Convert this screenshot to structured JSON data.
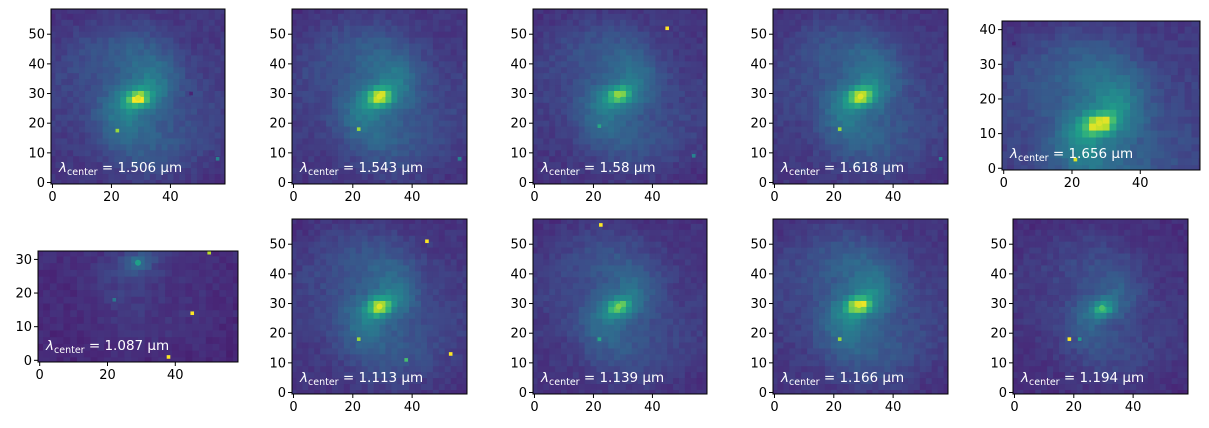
{
  "chart_data": {
    "type": "heatmap",
    "colormap": "viridis",
    "colors": {
      "background": "#ffffff",
      "axis": "#000000",
      "label_text": "#ffffff",
      "viridis_low": "#3d2e71",
      "viridis_mid": "#2a8c8c",
      "viridis_high": "#fde725"
    },
    "panels": [
      {
        "id": "p1",
        "row": 1,
        "col": 1,
        "symbol": "λ",
        "subscript": "center",
        "value": "1.506",
        "unit": "μm",
        "xlim": [
          -0.5,
          58.5
        ],
        "ylim": [
          -0.5,
          58.5
        ],
        "xticks": [
          0,
          20,
          40
        ],
        "xtick_labels": [
          "0",
          "20",
          "40"
        ],
        "yticks": [
          0,
          10,
          20,
          30,
          40,
          50
        ],
        "ytick_labels": [
          "0",
          "10",
          "20",
          "30",
          "40",
          "50"
        ],
        "galaxy": {
          "cx": 29,
          "cy": 28.5,
          "peak": 1.0,
          "disk_level": 0.55
        },
        "sources": [
          {
            "x": 22,
            "y": 17.5,
            "v": 0.85
          },
          {
            "x": 56,
            "y": 8,
            "v": 0.45
          },
          {
            "x": 47,
            "y": 30,
            "v": 0.1
          }
        ]
      },
      {
        "id": "p2",
        "row": 1,
        "col": 2,
        "symbol": "λ",
        "subscript": "center",
        "value": "1.543",
        "unit": "μm",
        "xlim": [
          -0.5,
          58.5
        ],
        "ylim": [
          -0.5,
          58.5
        ],
        "xticks": [
          0,
          20,
          40
        ],
        "xtick_labels": [
          "0",
          "20",
          "40"
        ],
        "yticks": [
          0,
          10,
          20,
          30,
          40,
          50
        ],
        "ytick_labels": [
          "0",
          "10",
          "20",
          "30",
          "40",
          "50"
        ],
        "galaxy": {
          "cx": 29,
          "cy": 29,
          "peak": 1.0,
          "disk_level": 0.55
        },
        "sources": [
          {
            "x": 22,
            "y": 18,
            "v": 0.85
          },
          {
            "x": 56,
            "y": 8,
            "v": 0.45
          }
        ]
      },
      {
        "id": "p3",
        "row": 1,
        "col": 3,
        "symbol": "λ",
        "subscript": "center",
        "value": "1.58",
        "unit": "μm",
        "xlim": [
          -0.5,
          58.5
        ],
        "ylim": [
          -0.5,
          58.5
        ],
        "xticks": [
          0,
          20,
          40
        ],
        "xtick_labels": [
          "0",
          "20",
          "40"
        ],
        "yticks": [
          0,
          10,
          20,
          30,
          40,
          50
        ],
        "ytick_labels": [
          "0",
          "10",
          "20",
          "30",
          "40",
          "50"
        ],
        "galaxy": {
          "cx": 28.5,
          "cy": 29.5,
          "peak": 0.8,
          "disk_level": 0.5
        },
        "sources": [
          {
            "x": 22,
            "y": 19,
            "v": 0.6
          },
          {
            "x": 45,
            "y": 52,
            "v": 1.0
          },
          {
            "x": 54,
            "y": 9,
            "v": 0.45
          }
        ]
      },
      {
        "id": "p4",
        "row": 1,
        "col": 4,
        "symbol": "λ",
        "subscript": "center",
        "value": "1.618",
        "unit": "μm",
        "xlim": [
          -0.5,
          58.5
        ],
        "ylim": [
          -0.5,
          58.5
        ],
        "xticks": [
          0,
          20,
          40
        ],
        "xtick_labels": [
          "0",
          "20",
          "40"
        ],
        "yticks": [
          0,
          10,
          20,
          30,
          40,
          50
        ],
        "ytick_labels": [
          "0",
          "10",
          "20",
          "30",
          "40",
          "50"
        ],
        "galaxy": {
          "cx": 29,
          "cy": 29,
          "peak": 1.0,
          "disk_level": 0.55
        },
        "sources": [
          {
            "x": 22,
            "y": 18,
            "v": 0.85
          },
          {
            "x": 56,
            "y": 8,
            "v": 0.45
          }
        ]
      },
      {
        "id": "p5",
        "row": 1,
        "col": 5,
        "symbol": "λ",
        "subscript": "center",
        "value": "1.656",
        "unit": "μm",
        "xlim": [
          -0.5,
          57.5
        ],
        "ylim": [
          -0.5,
          42.5
        ],
        "xticks": [
          0,
          20,
          40
        ],
        "xtick_labels": [
          "0",
          "20",
          "40"
        ],
        "yticks": [
          0,
          10,
          20,
          30,
          40
        ],
        "ytick_labels": [
          "0",
          "10",
          "20",
          "30",
          "40"
        ],
        "galaxy": {
          "cx": 28,
          "cy": 13,
          "peak": 1.0,
          "disk_level": 0.65
        },
        "sources": [
          {
            "x": 21,
            "y": 2.5,
            "v": 0.95
          },
          {
            "x": 3,
            "y": 36,
            "v": 0.1
          }
        ]
      },
      {
        "id": "p6",
        "row": 2,
        "col": 1,
        "symbol": "λ",
        "subscript": "center",
        "value": "1.087",
        "unit": "μm",
        "xlim": [
          -0.5,
          58.5
        ],
        "ylim": [
          -0.5,
          32.5
        ],
        "xticks": [
          0,
          20,
          40
        ],
        "xtick_labels": [
          "0",
          "20",
          "40"
        ],
        "yticks": [
          0,
          10,
          20,
          30
        ],
        "ytick_labels": [
          "0",
          "10",
          "20",
          "30"
        ],
        "galaxy": {
          "cx": 29,
          "cy": 29,
          "peak": 0.35,
          "disk_level": 0.15
        },
        "sources": [
          {
            "x": 45,
            "y": 14,
            "v": 1.0
          },
          {
            "x": 38,
            "y": 1,
            "v": 1.0
          },
          {
            "x": 22,
            "y": 18,
            "v": 0.4
          },
          {
            "x": 50,
            "y": 32,
            "v": 0.9
          }
        ]
      },
      {
        "id": "p7",
        "row": 2,
        "col": 2,
        "symbol": "λ",
        "subscript": "center",
        "value": "1.113",
        "unit": "μm",
        "xlim": [
          -0.5,
          58.5
        ],
        "ylim": [
          -0.5,
          58.5
        ],
        "xticks": [
          0,
          20,
          40
        ],
        "xtick_labels": [
          "0",
          "20",
          "40"
        ],
        "yticks": [
          0,
          10,
          20,
          30,
          40,
          50
        ],
        "ytick_labels": [
          "0",
          "10",
          "20",
          "30",
          "40",
          "50"
        ],
        "galaxy": {
          "cx": 29,
          "cy": 29,
          "peak": 1.0,
          "disk_level": 0.5
        },
        "sources": [
          {
            "x": 22,
            "y": 18,
            "v": 0.85
          },
          {
            "x": 45,
            "y": 51,
            "v": 1.0
          },
          {
            "x": 53,
            "y": 13,
            "v": 1.0
          },
          {
            "x": 38,
            "y": 11,
            "v": 0.7
          }
        ]
      },
      {
        "id": "p8",
        "row": 2,
        "col": 3,
        "symbol": "λ",
        "subscript": "center",
        "value": "1.139",
        "unit": "μm",
        "xlim": [
          -0.5,
          58.5
        ],
        "ylim": [
          -0.5,
          58.5
        ],
        "xticks": [
          0,
          20,
          40
        ],
        "xtick_labels": [
          "0",
          "20",
          "40"
        ],
        "yticks": [
          0,
          10,
          20,
          30,
          40,
          50
        ],
        "ytick_labels": [
          "0",
          "10",
          "20",
          "30",
          "40",
          "50"
        ],
        "galaxy": {
          "cx": 28.5,
          "cy": 29,
          "peak": 0.75,
          "disk_level": 0.45
        },
        "sources": [
          {
            "x": 22,
            "y": 18,
            "v": 0.6
          },
          {
            "x": 22.5,
            "y": 56.5,
            "v": 1.0
          }
        ]
      },
      {
        "id": "p9",
        "row": 2,
        "col": 4,
        "symbol": "λ",
        "subscript": "center",
        "value": "1.166",
        "unit": "μm",
        "xlim": [
          -0.5,
          58.5
        ],
        "ylim": [
          -0.5,
          58.5
        ],
        "xticks": [
          0,
          20,
          40
        ],
        "xtick_labels": [
          "0",
          "20",
          "40"
        ],
        "yticks": [
          0,
          10,
          20,
          30,
          40,
          50
        ],
        "ytick_labels": [
          "0",
          "10",
          "20",
          "30",
          "40",
          "50"
        ],
        "galaxy": {
          "cx": 28.5,
          "cy": 29.5,
          "peak": 1.0,
          "disk_level": 0.55
        },
        "sources": [
          {
            "x": 22,
            "y": 18,
            "v": 0.85
          }
        ]
      },
      {
        "id": "p10",
        "row": 2,
        "col": 5,
        "symbol": "λ",
        "subscript": "center",
        "value": "1.194",
        "unit": "μm",
        "xlim": [
          -0.5,
          58.5
        ],
        "ylim": [
          -0.5,
          58.5
        ],
        "xticks": [
          0,
          20,
          40
        ],
        "xtick_labels": [
          "0",
          "20",
          "40"
        ],
        "yticks": [
          0,
          10,
          20,
          30,
          40,
          50
        ],
        "ytick_labels": [
          "0",
          "10",
          "20",
          "30",
          "40",
          "50"
        ],
        "galaxy": {
          "cx": 29.5,
          "cy": 28.5,
          "peak": 0.6,
          "disk_level": 0.35
        },
        "sources": [
          {
            "x": 18.5,
            "y": 18,
            "v": 1.0
          },
          {
            "x": 22,
            "y": 18,
            "v": 0.55
          }
        ]
      }
    ]
  }
}
